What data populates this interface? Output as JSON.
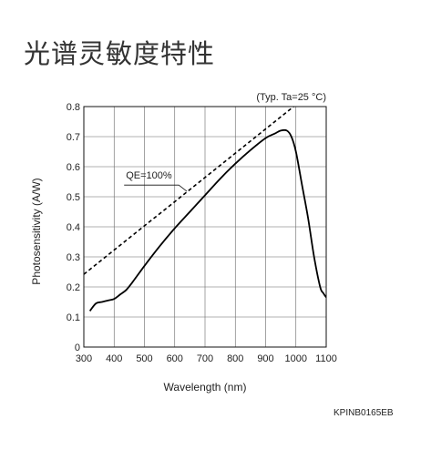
{
  "page": {
    "title": "光谱灵敏度特性",
    "doc_code": "KPINB0165EB"
  },
  "chart_data": {
    "type": "line",
    "title": "",
    "condition": "(Typ. Ta=25 °C)",
    "xlabel": "Wavelength (nm)",
    "ylabel": "Photosensitivity (A/W)",
    "xlim": [
      300,
      1100
    ],
    "ylim": [
      0,
      0.8
    ],
    "xticks": [
      300,
      400,
      500,
      600,
      700,
      800,
      900,
      1000,
      1100
    ],
    "yticks": [
      0,
      0.1,
      0.2,
      0.3,
      0.4,
      0.5,
      0.6,
      0.7,
      0.8
    ],
    "grid": true,
    "series": [
      {
        "name": "",
        "style": "solid",
        "color": "#000000",
        "x": [
          320,
          340,
          360,
          380,
          400,
          420,
          440,
          460,
          500,
          550,
          600,
          650,
          700,
          750,
          800,
          850,
          900,
          930,
          950,
          970,
          985,
          1000,
          1020,
          1040,
          1060,
          1080,
          1090,
          1100
        ],
        "y": [
          0.12,
          0.145,
          0.15,
          0.155,
          0.16,
          0.175,
          0.19,
          0.215,
          0.27,
          0.335,
          0.395,
          0.45,
          0.505,
          0.56,
          0.61,
          0.655,
          0.695,
          0.71,
          0.72,
          0.72,
          0.7,
          0.65,
          0.54,
          0.43,
          0.3,
          0.2,
          0.18,
          0.165
        ]
      },
      {
        "name": "QE=100%",
        "style": "dashed",
        "color": "#000000",
        "x": [
          300,
          1000
        ],
        "y": [
          0.242,
          0.806
        ]
      }
    ],
    "annotations": [
      {
        "text": "QE=100%",
        "x": 445,
        "y": 0.56,
        "target_x": 640,
        "target_y": 0.518
      }
    ]
  }
}
